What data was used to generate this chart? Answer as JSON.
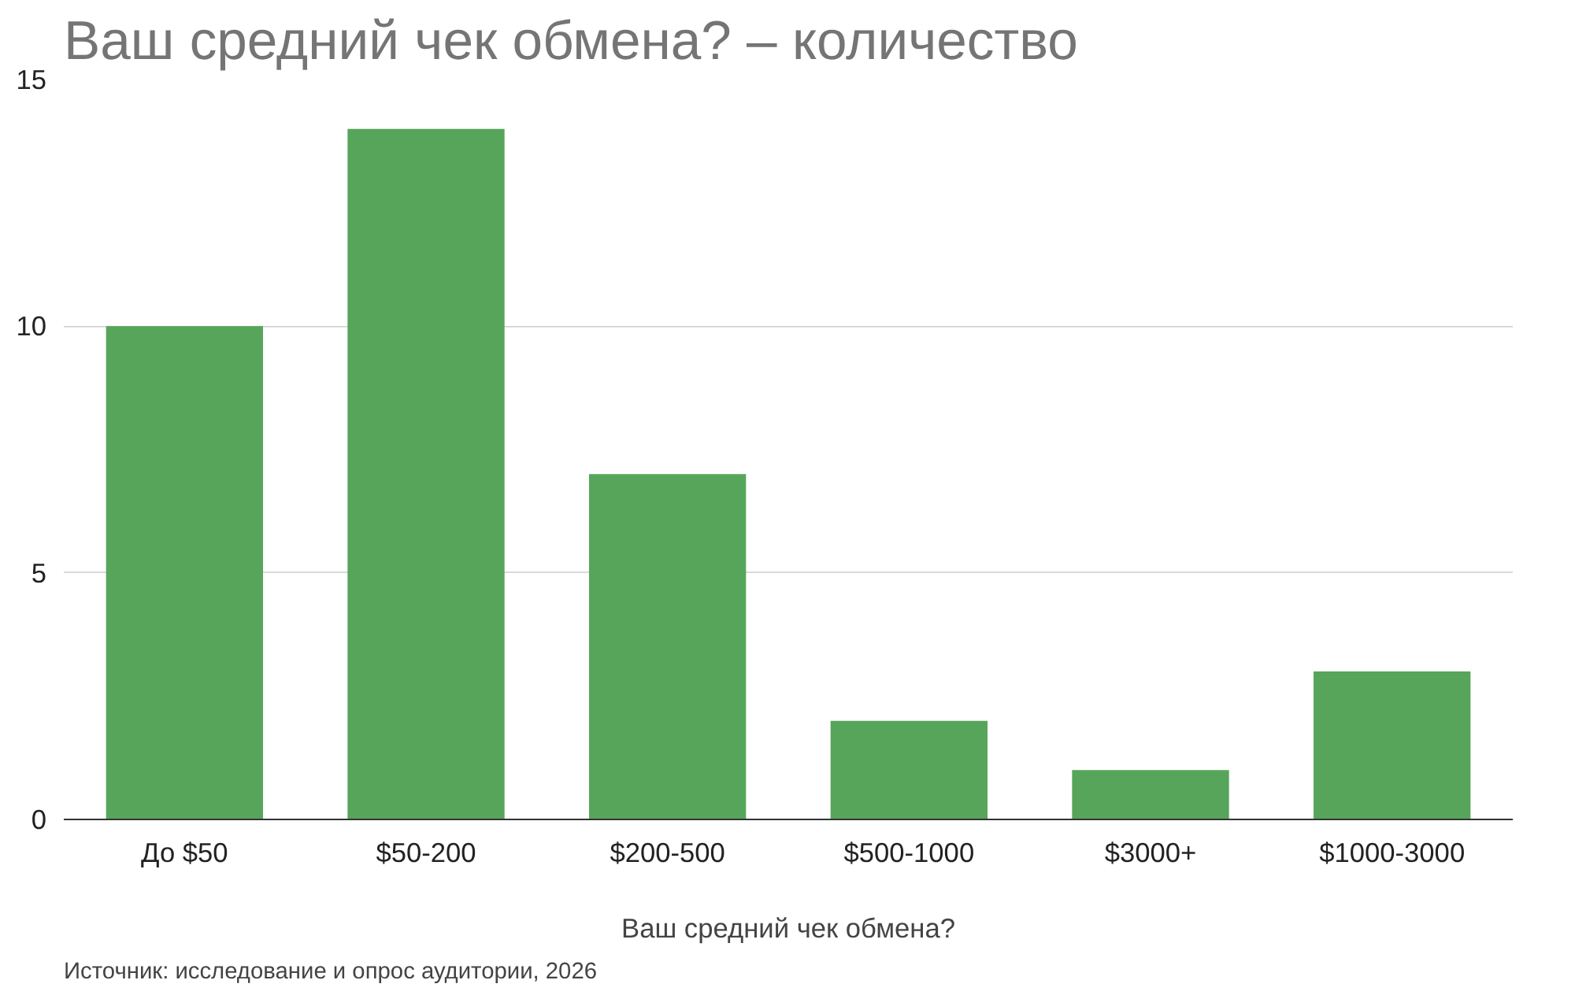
{
  "chart_data": {
    "type": "bar",
    "title": "Ваш средний чек обмена? – количество",
    "xlabel": "Ваш средний чек обмена?",
    "categories": [
      "До $50",
      "$50-200",
      "$200-500",
      "$500-1000",
      "$3000+",
      "$1000-3000"
    ],
    "values": [
      10,
      14,
      7,
      2,
      1,
      3
    ],
    "color": "#57a55a",
    "ylim": [
      0,
      15
    ],
    "yticks": [
      0,
      5,
      10,
      15
    ],
    "grid": "y",
    "annotations": [
      "Источник: исследование и опрос аудитории, 2026"
    ]
  }
}
